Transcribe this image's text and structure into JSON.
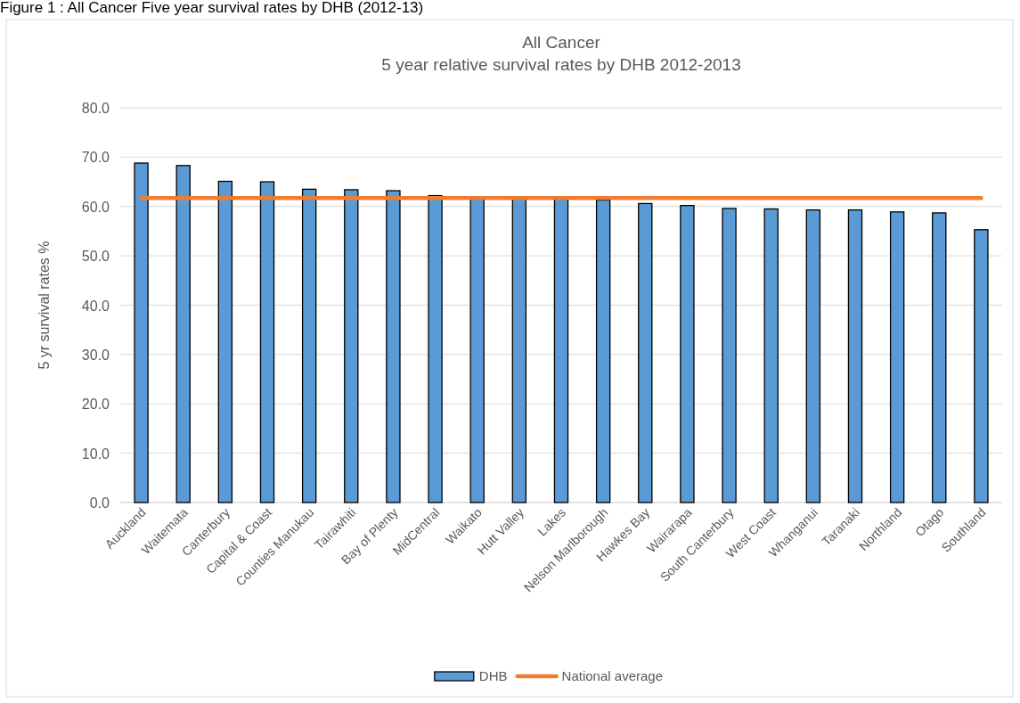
{
  "chart_data": {
    "type": "bar",
    "title": "All Cancer",
    "subtitle": "5 year relative survival rates  by DHB  2012-2013",
    "ylabel": "5 yr survival rates %",
    "annotations": [
      "Figure 1 : All Cancer Five year survival rates by DHB (2012-13)"
    ],
    "categories": [
      "Auckland",
      "Waitemata",
      "Canterbury",
      "Capital & Coast",
      "Counties Manukau",
      "Tairawhiti",
      "Bay of Plenty",
      "MidCentral",
      "Waikato",
      "Hutt Valley",
      "Lakes",
      "Nelson Marlborough",
      "Hawkes Bay",
      "Wairarapa",
      "South Canterbury",
      "West Coast",
      "Whanganui",
      "Taranaki",
      "Northland",
      "Otago",
      "Southland"
    ],
    "series": [
      {
        "name": "DHB",
        "color": "#5b9bd5",
        "values": [
          68.8,
          68.3,
          65.1,
          65.0,
          63.5,
          63.4,
          63.2,
          62.2,
          61.6,
          61.6,
          61.5,
          61.3,
          60.6,
          60.2,
          59.6,
          59.5,
          59.3,
          59.3,
          58.9,
          58.7,
          55.3
        ]
      },
      {
        "name": "National average",
        "type": "line",
        "color": "#ed7d31",
        "values": [
          61.7,
          61.7,
          61.7,
          61.7,
          61.7,
          61.7,
          61.7,
          61.7,
          61.7,
          61.7,
          61.7,
          61.7,
          61.7,
          61.7,
          61.7,
          61.7,
          61.7,
          61.7,
          61.7,
          61.7,
          61.7
        ]
      }
    ],
    "ylim": [
      0,
      80
    ],
    "yticks": [
      {
        "value": 0,
        "label": "0.0"
      },
      {
        "value": 10,
        "label": "10.0"
      },
      {
        "value": 20,
        "label": "20.0"
      },
      {
        "value": 30,
        "label": "30.0"
      },
      {
        "value": 40,
        "label": "40.0"
      },
      {
        "value": 50,
        "label": "50.0"
      },
      {
        "value": 60,
        "label": "60.0"
      },
      {
        "value": 70,
        "label": "70.0"
      },
      {
        "value": 80,
        "label": "80.0"
      }
    ],
    "grid": "y",
    "legend": "bottom"
  }
}
